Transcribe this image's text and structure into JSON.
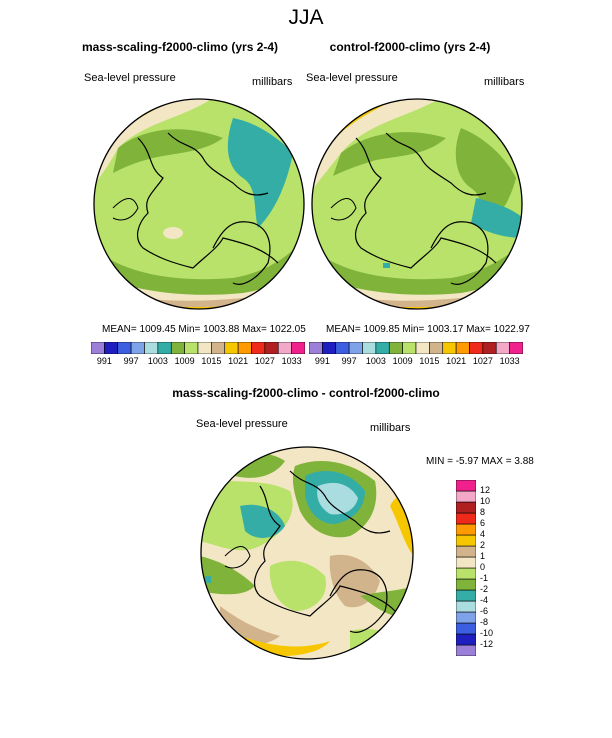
{
  "main_title": "JJA",
  "panels": [
    {
      "title": "mass-scaling-f2000-climo (yrs 2-4)",
      "variable": "Sea-level pressure",
      "units": "millibars",
      "stats": "MEAN= 1009.45  Min= 1003.88  Max= 1022.05"
    },
    {
      "title": "control-f2000-climo (yrs 2-4)",
      "variable": "Sea-level pressure",
      "units": "millibars",
      "stats": "MEAN= 1009.85  Min= 1003.17  Max= 1022.97"
    },
    {
      "title": "mass-scaling-f2000-climo - control-f2000-climo",
      "variable": "Sea-level pressure",
      "units": "millibars",
      "stats": "MIN =  -5.97 MAX =   3.88"
    }
  ],
  "colorbar_abs": {
    "colors": [
      "#9b7fd9",
      "#1f1fbf",
      "#3b5fe0",
      "#7fa3e8",
      "#a9dde0",
      "#34ada6",
      "#7fb33a",
      "#b9e26a",
      "#f3e6c4",
      "#d2b48c",
      "#f6c700",
      "#ff9b00",
      "#f02a1a",
      "#b02020",
      "#f3a8c8",
      "#f0208c"
    ],
    "labels": [
      "991",
      "997",
      "1003",
      "1009",
      "1015",
      "1021",
      "1027",
      "1033"
    ]
  },
  "colorbar_diff": {
    "colors": [
      "#9b7fd9",
      "#1f1fbf",
      "#3b5fe0",
      "#7fa3e8",
      "#a9dde0",
      "#34ada6",
      "#7fb33a",
      "#b9e26a",
      "#f3e6c4",
      "#d2b48c",
      "#f6c700",
      "#ff9b00",
      "#f02a1a",
      "#b02020",
      "#f3a8c8",
      "#f0208c"
    ],
    "labels": [
      "-12",
      "-10",
      "-8",
      "-6",
      "-4",
      "-2",
      "-1",
      "0",
      "1",
      "2",
      "4",
      "6",
      "8",
      "10",
      "12"
    ]
  },
  "fill_colors": {
    "lightgreen": "#b9e26a",
    "green": "#7fb33a",
    "teal": "#34ada6",
    "lightteal": "#a9dde0",
    "beige": "#f3e6c4",
    "tan": "#d2b48c",
    "yellow": "#f6c700",
    "orange": "#ff9b00"
  }
}
